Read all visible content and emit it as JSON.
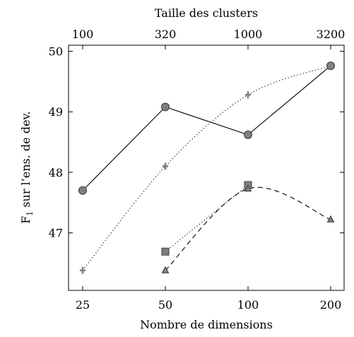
{
  "chart_data": {
    "type": "line",
    "title": "",
    "xlabel": "Nombre de dimensions",
    "ylabel": "F",
    "ylabel_sub": "1",
    "ylabel_rest": " sur l’ens. de dev.",
    "top_xlabel": "Taille des clusters",
    "x_ticks": [
      "25",
      "50",
      "100",
      "200"
    ],
    "top_x_ticks": [
      "100",
      "320",
      "1000",
      "3200"
    ],
    "y_ticks": [
      47,
      48,
      49,
      50
    ],
    "ylim": [
      46.05,
      50.1
    ],
    "grid": false,
    "series": [
      {
        "style": "solid",
        "marker": "circle",
        "color": "#808080",
        "points": [
          [
            0,
            47.7
          ],
          [
            1,
            49.08
          ],
          [
            2,
            48.62
          ],
          [
            3,
            49.76
          ]
        ]
      },
      {
        "style": "dotted",
        "marker": "plus",
        "color": "#808080",
        "points": [
          [
            0,
            46.38
          ],
          [
            1,
            48.1
          ],
          [
            2,
            49.28
          ],
          [
            3,
            49.76
          ]
        ]
      },
      {
        "style": "dotted",
        "marker": "square",
        "color": "#808080",
        "points": [
          [
            1,
            46.69
          ],
          [
            2,
            47.79
          ]
        ]
      },
      {
        "style": "dashed",
        "marker": "triangle",
        "color": "#808080",
        "points": [
          [
            1,
            46.38
          ],
          [
            2,
            47.73
          ],
          [
            3,
            47.22
          ]
        ]
      }
    ]
  }
}
